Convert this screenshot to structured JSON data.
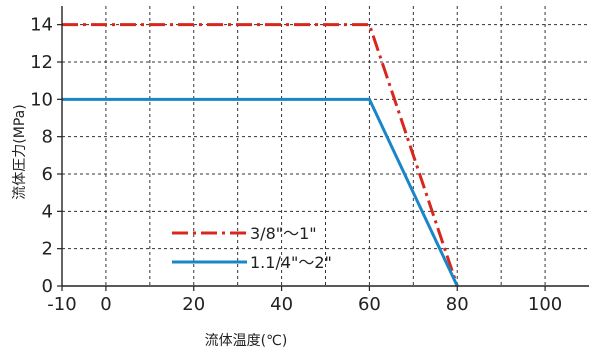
{
  "chart_data": {
    "type": "line",
    "xlabel": "流体温度(℃)",
    "ylabel": "流体圧力(MPa)",
    "xlim": [
      -10,
      110
    ],
    "ylim": [
      0,
      15
    ],
    "x_ticks": [
      -10,
      0,
      20,
      40,
      60,
      80,
      100
    ],
    "x_tick_labels": [
      "-10",
      "0",
      "20",
      "40",
      "60",
      "80",
      "100"
    ],
    "y_ticks": [
      0,
      2,
      4,
      6,
      8,
      10,
      12,
      14
    ],
    "y_tick_labels": [
      "0",
      "2",
      "4",
      "6",
      "8",
      "10",
      "12",
      "14"
    ],
    "x_grid": [
      -10,
      0,
      10,
      20,
      30,
      40,
      50,
      60,
      70,
      80,
      90,
      100
    ],
    "grid": true,
    "legend_position": "lower-left",
    "series": [
      {
        "name": "3/8\"〜1\"",
        "color": "#d8281e",
        "style": "dash-dot",
        "x": [
          -10,
          60,
          80
        ],
        "y": [
          14,
          14,
          0
        ]
      },
      {
        "name": "1.1/4\"〜2\"",
        "color": "#1a86c8",
        "style": "solid",
        "x": [
          -10,
          60,
          80
        ],
        "y": [
          10,
          10,
          0
        ]
      }
    ]
  }
}
